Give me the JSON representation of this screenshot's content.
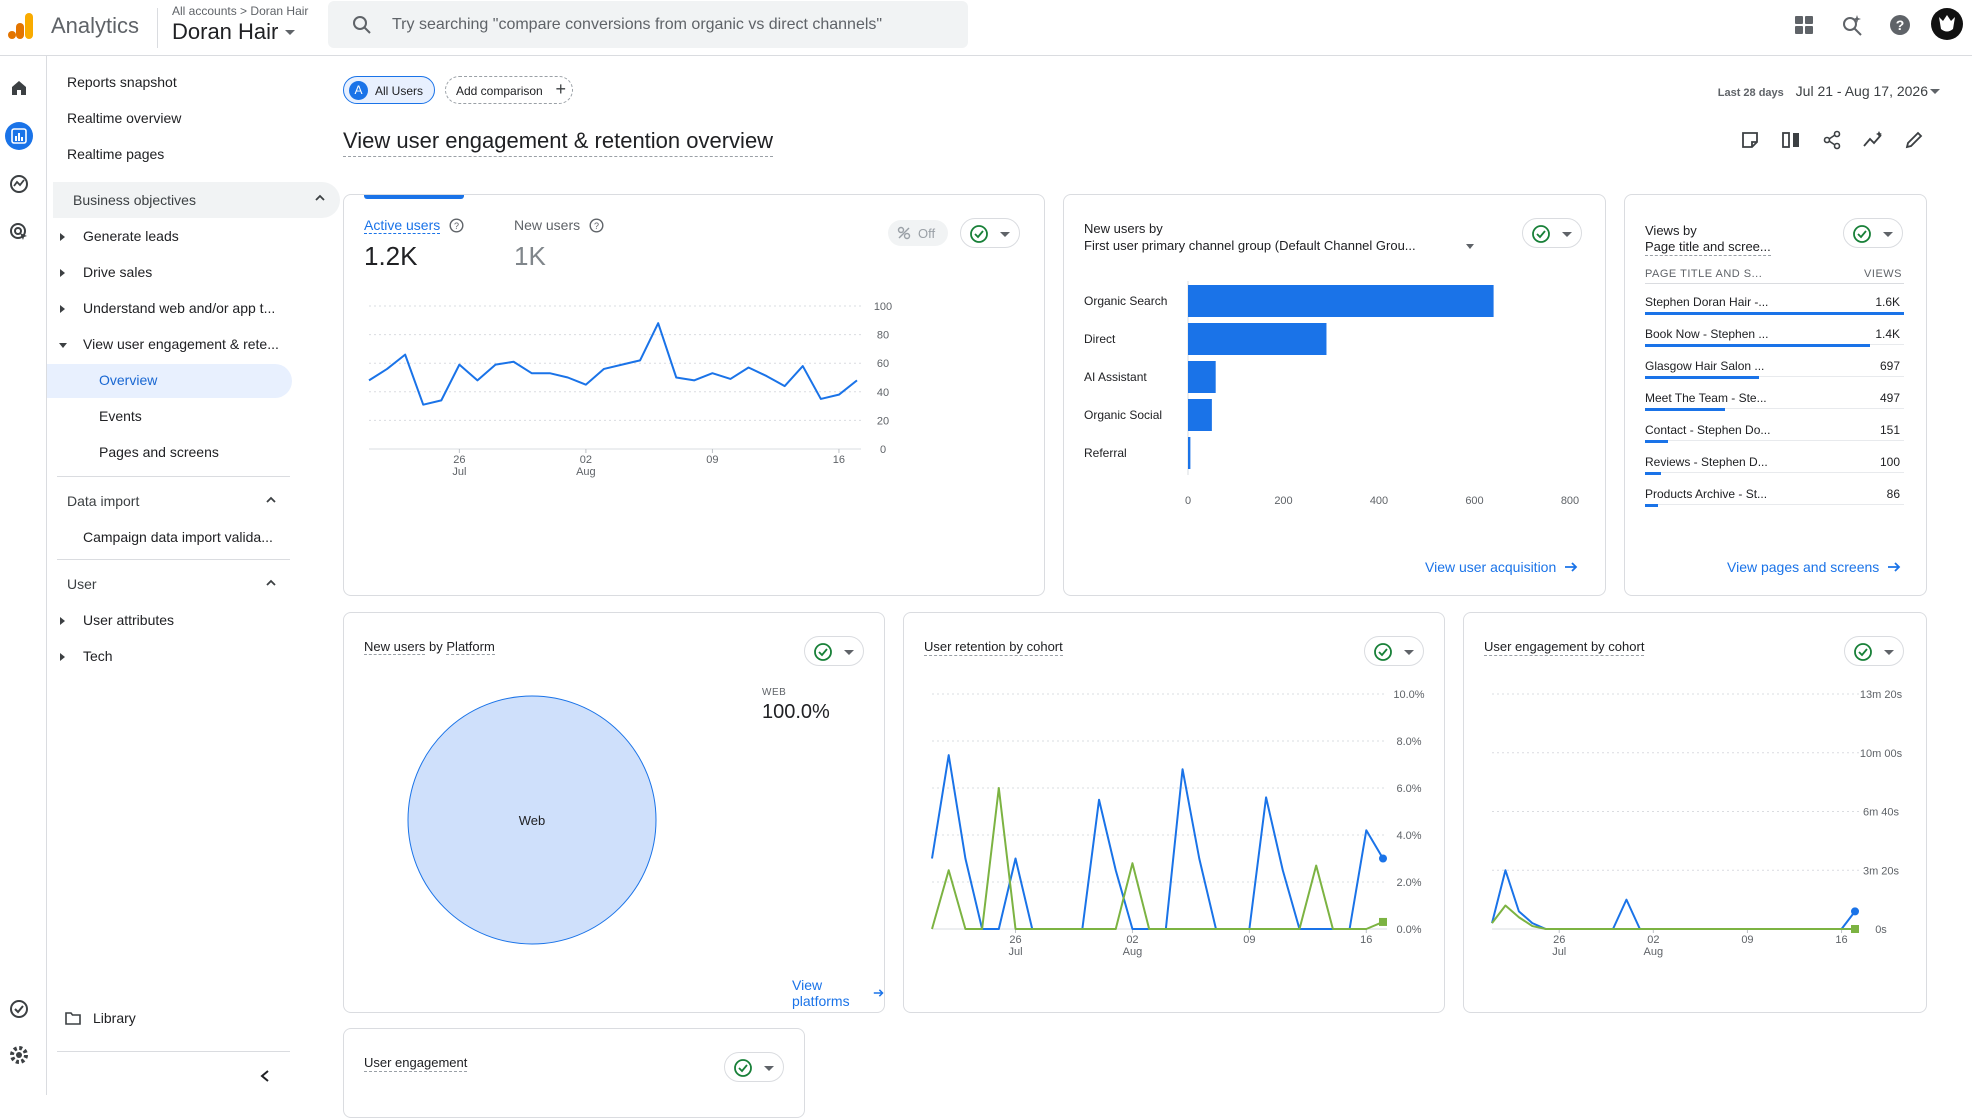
{
  "app": {
    "name": "Analytics",
    "breadcrumb_root": "All accounts",
    "breadcrumb_sep": ">",
    "breadcrumb_account": "Doran Hair",
    "property_name": "Doran Hair",
    "search_placeholder": "Try searching \"compare conversions from organic vs direct channels\""
  },
  "topbar_icons": [
    "apps-grid-icon",
    "search-insights-icon",
    "help-icon",
    "account-avatar-icon"
  ],
  "leftrail_icons": [
    "home-icon",
    "reports-icon",
    "explore-icon",
    "advertising-icon",
    "admin-check-icon",
    "settings-icon"
  ],
  "sidebar": {
    "top_items": [
      "Reports snapshot",
      "Realtime overview",
      "Realtime pages"
    ],
    "sections": [
      {
        "title": "Business objectives",
        "items": [
          {
            "label": "Generate leads",
            "expanded": false
          },
          {
            "label": "Drive sales",
            "expanded": false
          },
          {
            "label": "Understand web and/or app t...",
            "expanded": false
          },
          {
            "label": "View user engagement & rete...",
            "expanded": true
          }
        ],
        "subitems": [
          "Overview",
          "Events",
          "Pages and screens"
        ],
        "active_subitem": "Overview"
      },
      {
        "title": "Data import",
        "items": [
          {
            "label": "Campaign data import valida..."
          }
        ]
      },
      {
        "title": "User",
        "items": [
          {
            "label": "User attributes",
            "expanded": false
          },
          {
            "label": "Tech",
            "expanded": false
          }
        ]
      }
    ],
    "library_label": "Library"
  },
  "toolbar": {
    "all_users_badge": "A",
    "all_users_label": "All Users",
    "add_comparison_label": "Add comparison",
    "date_prefix": "Last 28 days",
    "date_range": "Jul 21 - Aug 17, 2026"
  },
  "page": {
    "title": "View user engagement & retention overview",
    "actions": [
      "customize-report-icon",
      "compare-icon",
      "share-icon",
      "insights-icon",
      "edit-icon"
    ]
  },
  "cards": {
    "active_users": {
      "metric1_label": "Active users",
      "metric1_value": "1.2K",
      "metric2_label": "New users",
      "metric2_value": "1K",
      "off_label": "Off"
    },
    "new_users_channel": {
      "title_line1": "New users by",
      "title_line2": "First user primary channel group (Default Channel Grou...",
      "link": "View user acquisition"
    },
    "views_by_page": {
      "title_line1": "Views by",
      "title_line2": "Page title and scree...",
      "col1": "PAGE TITLE AND S...",
      "col2": "VIEWS",
      "rows": [
        {
          "title": "Stephen Doran Hair -...",
          "views": "1.6K"
        },
        {
          "title": "Book Now - Stephen ...",
          "views": "1.4K"
        },
        {
          "title": "Glasgow Hair Salon ...",
          "views": "697"
        },
        {
          "title": "Meet The Team - Ste...",
          "views": "497"
        },
        {
          "title": "Contact - Stephen Do...",
          "views": "151"
        },
        {
          "title": "Reviews - Stephen D...",
          "views": "100"
        },
        {
          "title": "Products Archive - St...",
          "views": "86"
        }
      ],
      "row_bar_fractions": [
        1.0,
        0.87,
        0.44,
        0.31,
        0.09,
        0.06,
        0.05
      ],
      "link": "View pages and screens"
    },
    "platform": {
      "title_a": "New users",
      "title_b": " by ",
      "title_c": "Platform",
      "legend_label": "WEB",
      "legend_value": "100.0%",
      "slice_label": "Web",
      "link": "View platforms"
    },
    "retention": {
      "title": "User retention by cohort"
    },
    "engagement_cohort": {
      "title": "User engagement by cohort"
    },
    "user_engagement": {
      "title": "User engagement"
    }
  },
  "chart_data": [
    {
      "type": "line",
      "title": "Active users",
      "x": [
        "Jul 21",
        "Jul 22",
        "Jul 23",
        "Jul 24",
        "Jul 25",
        "Jul 26",
        "Jul 27",
        "Jul 28",
        "Jul 29",
        "Jul 30",
        "Jul 31",
        "Aug 01",
        "Aug 02",
        "Aug 03",
        "Aug 04",
        "Aug 05",
        "Aug 06",
        "Aug 07",
        "Aug 08",
        "Aug 09",
        "Aug 10",
        "Aug 11",
        "Aug 12",
        "Aug 13",
        "Aug 14",
        "Aug 15",
        "Aug 16",
        "Aug 17"
      ],
      "series": [
        {
          "values": [
            48,
            56,
            66,
            31,
            34,
            59,
            48,
            59,
            61,
            53,
            53,
            50,
            45,
            56,
            59,
            62,
            88,
            50,
            48,
            53,
            49,
            57,
            51,
            44,
            58,
            35,
            38,
            48
          ]
        }
      ],
      "x_tick_labels": [
        {
          "day": "26",
          "month": "Jul"
        },
        {
          "day": "02",
          "month": "Aug"
        },
        {
          "day": "09",
          "month": ""
        },
        {
          "day": "16",
          "month": ""
        }
      ],
      "ylim": [
        0,
        100
      ],
      "y_ticks": [
        "0",
        "20",
        "40",
        "60",
        "80",
        "100"
      ],
      "color": "#1a73e8"
    },
    {
      "type": "bar",
      "orientation": "horizontal",
      "categories": [
        "Organic Search",
        "Direct",
        "AI Assistant",
        "Organic Social",
        "Referral"
      ],
      "values": [
        640,
        290,
        58,
        50,
        5
      ],
      "xlim": [
        0,
        800
      ],
      "x_ticks": [
        "0",
        "200",
        "400",
        "600",
        "800"
      ],
      "color": "#1a73e8"
    },
    {
      "type": "pie",
      "categories": [
        "Web"
      ],
      "values": [
        100.0
      ],
      "color": "#cfe0fb"
    },
    {
      "type": "line",
      "title": "User retention by cohort",
      "x": [
        "Jul 21",
        "Jul 22",
        "Jul 23",
        "Jul 24",
        "Jul 25",
        "Jul 26",
        "Jul 27",
        "Jul 28",
        "Jul 29",
        "Jul 30",
        "Jul 31",
        "Aug 01",
        "Aug 02",
        "Aug 03",
        "Aug 04",
        "Aug 05",
        "Aug 06",
        "Aug 07",
        "Aug 08",
        "Aug 09",
        "Aug 10",
        "Aug 11",
        "Aug 12",
        "Aug 13",
        "Aug 14",
        "Aug 15",
        "Aug 16",
        "Aug 17"
      ],
      "series": [
        {
          "values": [
            3.0,
            7.4,
            3.0,
            0,
            0,
            3.0,
            0,
            0,
            0,
            0,
            5.5,
            2.5,
            0,
            0,
            0,
            6.8,
            3.0,
            0,
            0,
            0,
            5.6,
            2.5,
            0,
            0,
            0,
            0,
            4.2,
            3.0
          ],
          "color": "#1a73e8"
        },
        {
          "values": [
            0,
            2.5,
            0,
            0,
            6.0,
            0,
            0,
            0,
            0,
            0,
            0,
            0,
            2.8,
            0,
            0,
            0,
            0,
            0,
            0,
            0,
            0,
            0,
            0,
            2.7,
            0,
            0,
            0,
            0.3
          ],
          "color": "#7cb342"
        }
      ],
      "x_tick_labels": [
        {
          "day": "26",
          "month": "Jul"
        },
        {
          "day": "02",
          "month": "Aug"
        },
        {
          "day": "09",
          "month": ""
        },
        {
          "day": "16",
          "month": ""
        }
      ],
      "ylim": [
        0,
        10
      ],
      "y_ticks": [
        "0.0%",
        "2.0%",
        "4.0%",
        "6.0%",
        "8.0%",
        "10.0%"
      ]
    },
    {
      "type": "line",
      "title": "User engagement by cohort",
      "x": [
        "Jul 21",
        "Jul 22",
        "Jul 23",
        "Jul 24",
        "Jul 25",
        "Jul 26",
        "Jul 27",
        "Jul 28",
        "Jul 29",
        "Jul 30",
        "Jul 31",
        "Aug 01",
        "Aug 02",
        "Aug 03",
        "Aug 04",
        "Aug 05",
        "Aug 06",
        "Aug 07",
        "Aug 08",
        "Aug 09",
        "Aug 10",
        "Aug 11",
        "Aug 12",
        "Aug 13",
        "Aug 14",
        "Aug 15",
        "Aug 16",
        "Aug 17"
      ],
      "series": [
        {
          "values": [
            20,
            200,
            60,
            20,
            0,
            0,
            0,
            0,
            0,
            0,
            100,
            0,
            0,
            0,
            0,
            0,
            0,
            0,
            0,
            0,
            0,
            0,
            0,
            0,
            0,
            0,
            0,
            60
          ],
          "color": "#1a73e8"
        },
        {
          "values": [
            20,
            80,
            40,
            10,
            0,
            0,
            0,
            0,
            0,
            0,
            0,
            0,
            0,
            0,
            0,
            0,
            0,
            0,
            0,
            0,
            0,
            0,
            0,
            0,
            0,
            0,
            0,
            0
          ],
          "color": "#7cb342"
        }
      ],
      "x_tick_labels": [
        {
          "day": "26",
          "month": "Jul"
        },
        {
          "day": "02",
          "month": "Aug"
        },
        {
          "day": "09",
          "month": ""
        },
        {
          "day": "16",
          "month": ""
        }
      ],
      "ylim": [
        0,
        800
      ],
      "y_ticks": [
        "0s",
        "3m 20s",
        "6m 40s",
        "10m 00s",
        "13m 20s"
      ]
    }
  ]
}
